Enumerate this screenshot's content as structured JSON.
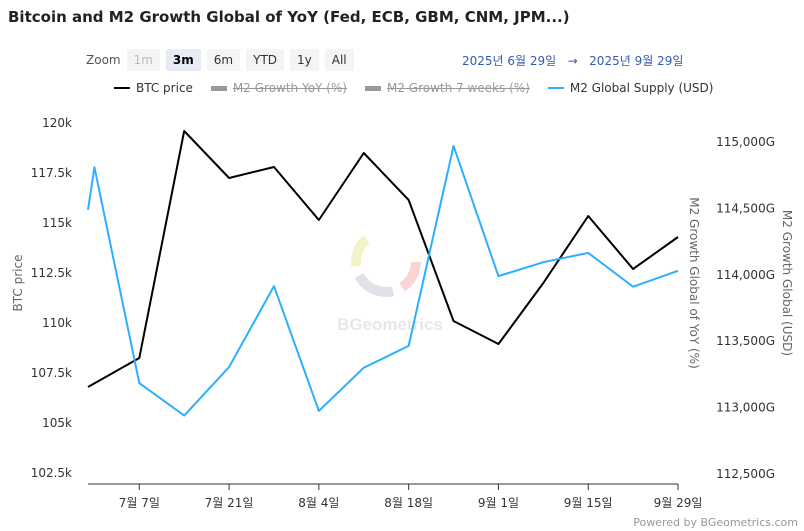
{
  "title": "Bitcoin and M2 Growth Global of YoY (Fed, ECB, GBM, CNM, JPM...)",
  "zoom": {
    "label": "Zoom",
    "buttons": [
      "1m",
      "3m",
      "6m",
      "YTD",
      "1y",
      "All"
    ],
    "selected": "3m",
    "disabled": [
      "1m"
    ]
  },
  "range": {
    "from": "2025년 6월 29일",
    "arrow": "→",
    "to": "2025년 9월 29일"
  },
  "legend": [
    {
      "label": "BTC price",
      "color": "#000000",
      "visible": true
    },
    {
      "label": "M2 Growth YoY (%)",
      "color": "#999999",
      "visible": false
    },
    {
      "label": "M2 Growth 7 weeks (%)",
      "color": "#999999",
      "visible": false
    },
    {
      "label": "M2 Global Supply (USD)",
      "color": "#2caffe",
      "visible": true
    }
  ],
  "credits": "Powered by BGeometrics.com",
  "watermark": "BGeometrics",
  "chart_data": {
    "type": "line",
    "x_unit": "days since 2025-06-29",
    "xlim": [
      0,
      92
    ],
    "x_ticks": [
      {
        "day": 8,
        "label": "7월 7일"
      },
      {
        "day": 22,
        "label": "7월 21일"
      },
      {
        "day": 36,
        "label": "8월 4일"
      },
      {
        "day": 50,
        "label": "8월 18일"
      },
      {
        "day": 64,
        "label": "9월 1일"
      },
      {
        "day": 78,
        "label": "9월 15일"
      },
      {
        "day": 92,
        "label": "9월 29일"
      }
    ],
    "y_left": {
      "label": "BTC price",
      "ylim": [
        102500,
        120000
      ],
      "ticks": [
        {
          "v": 102500,
          "label": "102.5k"
        },
        {
          "v": 105000,
          "label": "105k"
        },
        {
          "v": 107500,
          "label": "107.5k"
        },
        {
          "v": 110000,
          "label": "110k"
        },
        {
          "v": 112500,
          "label": "112.5k"
        },
        {
          "v": 115000,
          "label": "115k"
        },
        {
          "v": 117500,
          "label": "117.5k"
        },
        {
          "v": 120000,
          "label": "120k"
        }
      ]
    },
    "y_mid_label": "M2 Growth Global of YoY (%)",
    "y_right": {
      "label": "M2 Growth Global (USD)",
      "ylim": [
        112500,
        115000
      ],
      "ticks": [
        {
          "v": 112500,
          "label": "112,500G"
        },
        {
          "v": 113000,
          "label": "113,000G"
        },
        {
          "v": 113500,
          "label": "113,500G"
        },
        {
          "v": 114000,
          "label": "114,000G"
        },
        {
          "v": 114500,
          "label": "114,500G"
        },
        {
          "v": 115000,
          "label": "115,000G"
        }
      ]
    },
    "series": [
      {
        "name": "BTC price",
        "axis": "left",
        "color": "#000000",
        "x": [
          0,
          8,
          15,
          22,
          29,
          36,
          43,
          50,
          57,
          64,
          71,
          78,
          85,
          92
        ],
        "y": [
          106800,
          108250,
          119600,
          117250,
          117800,
          115150,
          118500,
          116150,
          110100,
          108950,
          112000,
          115350,
          112700,
          114300
        ]
      },
      {
        "name": "M2 Global Supply (USD)",
        "axis": "right",
        "color": "#2caffe",
        "x": [
          0,
          1,
          8,
          15,
          22,
          29,
          36,
          43,
          50,
          57,
          64,
          71,
          78,
          85,
          92
        ],
        "y": [
          114490,
          114810,
          113185,
          112940,
          113305,
          113915,
          112975,
          113300,
          113465,
          114970,
          113990,
          114095,
          114165,
          113910,
          114030
        ]
      }
    ]
  }
}
